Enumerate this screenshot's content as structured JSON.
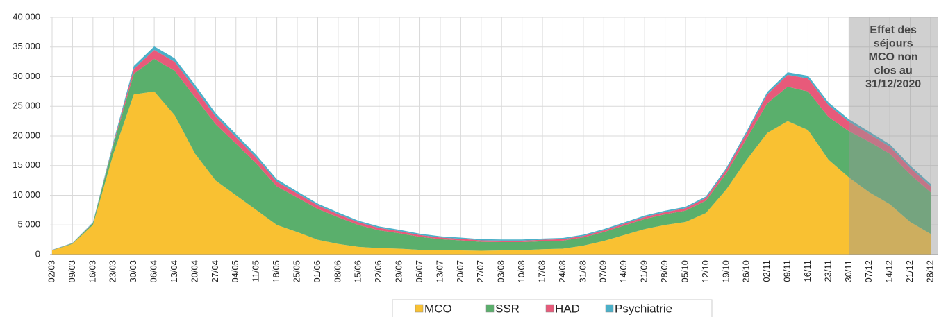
{
  "chart_data": {
    "type": "stacked_area",
    "categories": [
      "02/03",
      "09/03",
      "16/03",
      "23/03",
      "30/03",
      "06/04",
      "13/04",
      "20/04",
      "27/04",
      "04/05",
      "11/05",
      "18/05",
      "25/05",
      "01/06",
      "08/06",
      "15/06",
      "22/06",
      "29/06",
      "06/07",
      "13/07",
      "20/07",
      "27/07",
      "03/08",
      "10/08",
      "17/08",
      "24/08",
      "31/08",
      "07/09",
      "14/09",
      "21/09",
      "28/09",
      "05/10",
      "12/10",
      "19/10",
      "26/10",
      "02/11",
      "09/11",
      "16/11",
      "23/11",
      "30/11",
      "07/12",
      "14/12",
      "21/12",
      "28/12"
    ],
    "series": [
      {
        "name": "MCO",
        "color": "#f9c132",
        "values": [
          700,
          1800,
          5000,
          17000,
          27000,
          27500,
          23500,
          17000,
          12500,
          10000,
          7500,
          5000,
          3800,
          2500,
          1800,
          1300,
          1100,
          1000,
          800,
          700,
          700,
          650,
          700,
          750,
          900,
          1000,
          1500,
          2300,
          3300,
          4300,
          5000,
          5500,
          7000,
          11000,
          16000,
          20500,
          22500,
          21000,
          16000,
          13000,
          10500,
          8500,
          5500,
          3500
        ]
      },
      {
        "name": "SSR",
        "color": "#5aaf6c",
        "values": [
          50,
          100,
          300,
          1500,
          3500,
          5500,
          7500,
          9500,
          9500,
          8700,
          7800,
          6500,
          5800,
          5200,
          4500,
          3700,
          3000,
          2600,
          2200,
          1900,
          1700,
          1500,
          1400,
          1350,
          1350,
          1350,
          1400,
          1500,
          1600,
          1700,
          1800,
          1900,
          2100,
          2700,
          3600,
          5000,
          5800,
          6500,
          7200,
          7800,
          8500,
          8500,
          8000,
          7000
        ]
      },
      {
        "name": "HAD",
        "color": "#e85a7a",
        "values": [
          20,
          30,
          50,
          200,
          800,
          1500,
          1500,
          1500,
          1300,
          1100,
          1000,
          800,
          700,
          600,
          500,
          450,
          400,
          350,
          300,
          280,
          260,
          250,
          250,
          250,
          250,
          250,
          250,
          280,
          300,
          330,
          350,
          400,
          450,
          600,
          900,
          1500,
          2000,
          2200,
          2000,
          1600,
          1300,
          1200,
          1100,
          1000
        ]
      },
      {
        "name": "Psychiatrie",
        "color": "#4bb0c8",
        "values": [
          30,
          50,
          100,
          300,
          500,
          600,
          600,
          600,
          550,
          500,
          450,
          400,
          350,
          300,
          300,
          250,
          250,
          230,
          220,
          200,
          200,
          200,
          200,
          200,
          200,
          200,
          200,
          220,
          230,
          250,
          250,
          250,
          250,
          300,
          350,
          400,
          450,
          450,
          450,
          400,
          400,
          400,
          400,
          400
        ]
      }
    ],
    "ylim": [
      0,
      40000
    ],
    "yticks": [
      0,
      {
        "value": 5000,
        "label": "5 000"
      },
      {
        "value": 10000,
        "label": "10 000"
      },
      {
        "value": 15000,
        "label": "15 000"
      },
      {
        "value": 20000,
        "label": "20 000"
      },
      {
        "value": 25000,
        "label": "25 000"
      },
      {
        "value": 30000,
        "label": "30 000"
      },
      {
        "value": 35000,
        "label": "35 000"
      },
      {
        "value": 40000,
        "label": "40 000"
      }
    ],
    "grid": true,
    "annotation": [
      "Effet des",
      "séjours",
      "MCO non",
      "clos au",
      "31/12/2020"
    ]
  }
}
